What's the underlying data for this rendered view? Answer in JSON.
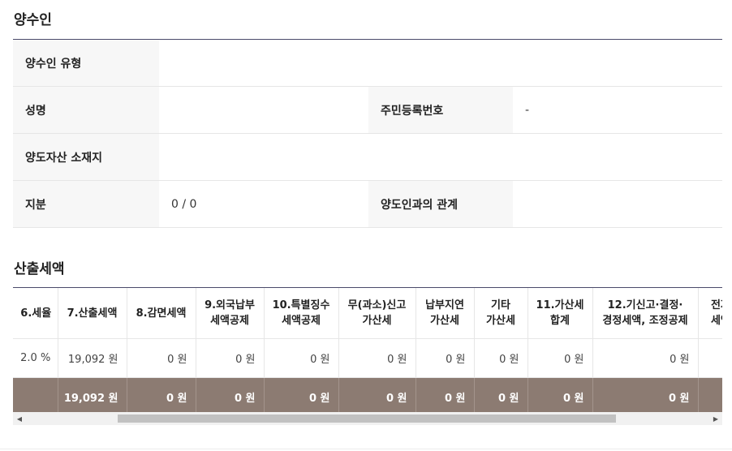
{
  "transferee": {
    "title": "양수인",
    "type_label": "양수인 유형",
    "type_value": "",
    "name_label": "성명",
    "name_value": "",
    "rrn_label": "주민등록번호",
    "rrn_value": "-",
    "location_label": "양도자산 소재지",
    "location_value": "",
    "share_label": "지분",
    "share_value": "0 / 0",
    "relation_label": "양도인과의 관계",
    "relation_value": ""
  },
  "tax": {
    "title": "산출세액",
    "headers": [
      [
        "6.세율"
      ],
      [
        "7.산출세액"
      ],
      [
        "8.감면세액"
      ],
      [
        "9.외국납부",
        "세액공제"
      ],
      [
        "10.특별징수",
        "세액공제"
      ],
      [
        "무(과소)신고",
        "가산세"
      ],
      [
        "납부지연",
        "가산세"
      ],
      [
        "기타",
        "가산세"
      ],
      [
        "11.가산세",
        "합계"
      ],
      [
        "12.기신고·결정·",
        "경정세액, 조정공제"
      ],
      [
        "전자",
        "세액"
      ]
    ],
    "row": [
      "2.0 %",
      "19,092 원",
      "0 원",
      "0 원",
      "0 원",
      "0 원",
      "0 원",
      "0 원",
      "0 원",
      "0 원",
      ""
    ],
    "total": [
      "",
      "19,092 원",
      "0 원",
      "0 원",
      "0 원",
      "0 원",
      "0 원",
      "0 원",
      "0 원",
      "0 원",
      ""
    ]
  },
  "scrollbar": {
    "left_arrow": "◀",
    "right_arrow": "▶"
  }
}
